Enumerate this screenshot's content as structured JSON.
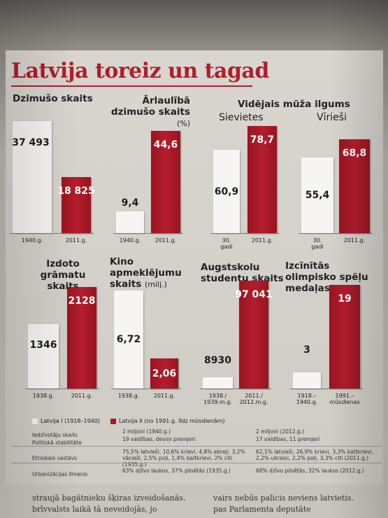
{
  "title": "Latvija toreiz un tagad",
  "chart_data": [
    {
      "type": "bar",
      "title": "Dzimušo skaits",
      "categories": [
        "1940.g.",
        "2011.g."
      ],
      "values": [
        37493,
        18825
      ],
      "value_labels": [
        "37 493",
        "18 825"
      ]
    },
    {
      "type": "bar",
      "title": "Ārlaulībā dzimušo skaits",
      "unit": "(%)",
      "categories": [
        "1940.g.",
        "2011.g."
      ],
      "values": [
        9.4,
        44.6
      ],
      "value_labels": [
        "9,4",
        "44,6"
      ]
    },
    {
      "type": "bar",
      "title": "Vidējais mūža ilgums",
      "group": "Sievietes",
      "categories": [
        "30. gadi",
        "2011.g."
      ],
      "values": [
        60.9,
        78.7
      ],
      "value_labels": [
        "60,9",
        "78,7"
      ]
    },
    {
      "type": "bar",
      "title": "",
      "group": "Vīrieši",
      "categories": [
        "30. gadi",
        "2011.g."
      ],
      "values": [
        55.4,
        68.8
      ],
      "value_labels": [
        "55,4",
        "68,8"
      ]
    },
    {
      "type": "bar",
      "title": "Izdoto grāmatu skaits",
      "categories": [
        "1938.g.",
        "2011.g."
      ],
      "values": [
        1346,
        2128
      ],
      "value_labels": [
        "1346",
        "2128"
      ]
    },
    {
      "type": "bar",
      "title": "Kino apmeklējumu skaits",
      "unit": "(milj.)",
      "categories": [
        "1938.g.",
        "2011.g."
      ],
      "values": [
        6.72,
        2.06
      ],
      "value_labels": [
        "6,72",
        "2,06"
      ]
    },
    {
      "type": "bar",
      "title": "Augstskolu studentu skaits",
      "categories": [
        "1938./ 1939.m.g.",
        "2011./ 2012.m.g."
      ],
      "values": [
        8930,
        97041
      ],
      "value_labels": [
        "8930",
        "97 041"
      ]
    },
    {
      "type": "bar",
      "title": "Izcīnītās olimpisko spēļu medaļas",
      "categories": [
        "1918.– 1940.g.",
        "1991.– mūsdienas"
      ],
      "values": [
        3,
        19
      ],
      "value_labels": [
        "3",
        "19"
      ]
    }
  ],
  "legend": {
    "white": {
      "label": "Latvija I (1918–1940)",
      "color": "#f6f5f1"
    },
    "red": {
      "label": "Latvija II (no 1991.g. līdz mūsdienām)",
      "color": "#a8192a"
    }
  },
  "table": [
    {
      "label": "Iedzīvotāju skaits",
      "left": "2 miljoni (1940.g.)",
      "right": "2 miljoni (2012.g.)"
    },
    {
      "label": "Politiskā stabilitāte",
      "left": "19 valdības, deviņi premjeri",
      "right": "17 valdības, 11 premjeri"
    },
    {
      "label": "Etniskais sastāvs",
      "left": "75,5% latvieši, 10,6% krievi, 4,8% ebreji, 3,2% vācieši, 2,5% poļi, 1,4% baltkrievi, 2% citi (1935.g.)",
      "right": "62,1% latvieši, 26,9% krievi, 3,3% baltkrievi, 2,2% ukraiņi, 2,2% poļi, 3,3% citi (2011.g.)"
    },
    {
      "label": "Urbanizācijas līmenis",
      "left": "63% dzīvo laukos, 37% pilsētās (1935.g.)",
      "right": "68% dzīvo pilsētās, 32% laukos (2012.g.)"
    }
  ],
  "body_text": {
    "left": "straujā bagātnieku šķiras izveidošanās.",
    "left2": "brīvvalsts laikā tā neveidojās, jo",
    "right": "vairs nebūs palicis neviens latvietis.",
    "right2": "pas Parlamenta deputāte"
  }
}
